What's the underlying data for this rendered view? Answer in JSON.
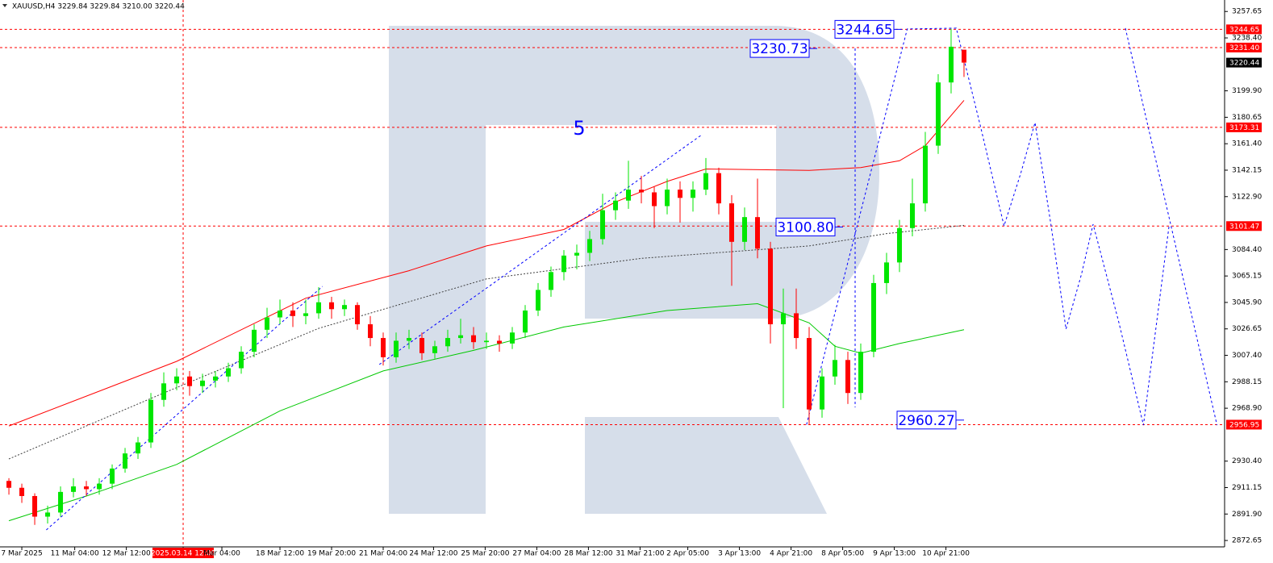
{
  "chart_data": {
    "type": "candlestick",
    "title": "XAUUSD,H4 3229.84 3229.84 3210.00 3220.44",
    "up_color": "#00e600",
    "down_color": "#ff0000",
    "candles": [
      [
        2916,
        2918,
        2906,
        2911
      ],
      [
        2911,
        2914,
        2900,
        2905
      ],
      [
        2905,
        2907,
        2884,
        2890
      ],
      [
        2890,
        2898,
        2885,
        2893
      ],
      [
        2893,
        2912,
        2890,
        2908
      ],
      [
        2908,
        2918,
        2904,
        2912
      ],
      [
        2912,
        2916,
        2905,
        2910
      ],
      [
        2910,
        2918,
        2906,
        2914
      ],
      [
        2914,
        2928,
        2910,
        2925
      ],
      [
        2925,
        2940,
        2922,
        2936
      ],
      [
        2936,
        2948,
        2932,
        2944
      ],
      [
        2944,
        2980,
        2940,
        2975
      ],
      [
        2975,
        2995,
        2970,
        2987
      ],
      [
        2987,
        2998,
        2982,
        2992
      ],
      [
        2992,
        2996,
        2978,
        2985
      ],
      [
        2985,
        2994,
        2980,
        2989
      ],
      [
        2989,
        2996,
        2984,
        2992
      ],
      [
        2992,
        3002,
        2988,
        2998
      ],
      [
        2998,
        3014,
        2994,
        3010
      ],
      [
        3010,
        3030,
        3006,
        3026
      ],
      [
        3026,
        3042,
        3020,
        3035
      ],
      [
        3035,
        3048,
        3030,
        3040
      ],
      [
        3040,
        3046,
        3028,
        3036
      ],
      [
        3036,
        3048,
        3030,
        3038
      ],
      [
        3038,
        3057,
        3034,
        3046
      ],
      [
        3046,
        3050,
        3034,
        3041
      ],
      [
        3041,
        3048,
        3036,
        3044
      ],
      [
        3044,
        3046,
        3026,
        3030
      ],
      [
        3030,
        3036,
        3014,
        3020
      ],
      [
        3020,
        3024,
        3000,
        3006
      ],
      [
        3006,
        3024,
        3002,
        3018
      ],
      [
        3018,
        3026,
        3012,
        3020
      ],
      [
        3020,
        3024,
        3004,
        3009
      ],
      [
        3009,
        3018,
        3005,
        3014
      ],
      [
        3014,
        3026,
        3010,
        3020
      ],
      [
        3020,
        3034,
        3016,
        3022
      ],
      [
        3022,
        3028,
        3012,
        3017
      ],
      [
        3017,
        3024,
        3012,
        3018
      ],
      [
        3018,
        3022,
        3010,
        3016
      ],
      [
        3016,
        3028,
        3012,
        3024
      ],
      [
        3024,
        3044,
        3020,
        3040
      ],
      [
        3040,
        3060,
        3036,
        3055
      ],
      [
        3055,
        3072,
        3050,
        3068
      ],
      [
        3068,
        3084,
        3062,
        3080
      ],
      [
        3080,
        3088,
        3070,
        3082
      ],
      [
        3082,
        3098,
        3076,
        3092
      ],
      [
        3092,
        3125,
        3088,
        3113
      ],
      [
        3113,
        3126,
        3106,
        3120
      ],
      [
        3120,
        3149,
        3114,
        3128
      ],
      [
        3128,
        3138,
        3118,
        3126
      ],
      [
        3126,
        3130,
        3100,
        3116
      ],
      [
        3116,
        3136,
        3110,
        3128
      ],
      [
        3128,
        3134,
        3104,
        3122
      ],
      [
        3122,
        3134,
        3112,
        3128
      ],
      [
        3128,
        3151,
        3124,
        3140
      ],
      [
        3140,
        3144,
        3110,
        3118
      ],
      [
        3118,
        3124,
        3058,
        3090
      ],
      [
        3090,
        3115,
        3084,
        3108
      ],
      [
        3108,
        3136,
        3078,
        3085
      ],
      [
        3085,
        3090,
        3016,
        3030
      ],
      [
        3030,
        3056,
        2969,
        3038
      ],
      [
        3038,
        3056,
        3012,
        3020
      ],
      [
        3020,
        3028,
        2957,
        2968
      ],
      [
        2968,
        2998,
        2962,
        2992
      ],
      [
        2992,
        3015,
        2986,
        3004
      ],
      [
        3004,
        3010,
        2972,
        2980
      ],
      [
        2980,
        3016,
        2975,
        3010
      ],
      [
        3010,
        3066,
        3006,
        3060
      ],
      [
        3060,
        3082,
        3052,
        3075
      ],
      [
        3075,
        3106,
        3068,
        3100
      ],
      [
        3100,
        3136,
        3094,
        3118
      ],
      [
        3118,
        3170,
        3112,
        3160
      ],
      [
        3160,
        3212,
        3154,
        3206
      ],
      [
        3206,
        3245,
        3198,
        3232
      ],
      [
        3229.84,
        3229.84,
        3210,
        3220.44
      ]
    ],
    "lines": [
      {
        "color": "#ff0000",
        "style": "solid",
        "x": [
          0,
          13,
          23,
          31,
          37,
          43,
          47,
          51,
          54,
          62,
          66,
          69,
          71,
          74
        ],
        "values": [
          2956,
          3003,
          3049,
          3069,
          3087,
          3099,
          3119,
          3134,
          3143,
          3142,
          3144,
          3149,
          3160,
          3193
        ]
      },
      {
        "color": "#00c800",
        "style": "solid",
        "x": [
          0,
          6,
          13,
          21,
          29,
          36,
          43,
          51,
          58,
          62,
          64,
          66,
          69,
          74
        ],
        "values": [
          2887,
          2905,
          2928,
          2967,
          2996,
          3011,
          3028,
          3040,
          3045,
          3031,
          3014,
          3009,
          3016,
          3026
        ]
      },
      {
        "color": "#404040",
        "style": "dotted",
        "x": [
          0,
          12,
          24,
          37,
          49,
          62,
          68,
          74
        ],
        "values": [
          2932,
          2980,
          3027,
          3063,
          3078,
          3087,
          3096,
          3102
        ]
      },
      {
        "color": "#0000ff",
        "style": "dashed",
        "x": [
          2.9,
          24.3
        ],
        "values": [
          2880.3,
          3057.6
        ]
      },
      {
        "color": "#0000ff",
        "style": "dashed",
        "x": [
          28.7,
          53.7
        ],
        "values": [
          3000.7,
          3168
        ]
      },
      {
        "color": "#0000ff",
        "style": "dashed",
        "x": [
          61.8,
          69.6,
          73.4,
          75.25,
          77.1,
          78.4,
          79.5,
          80.75,
          81.9,
          83.1,
          84,
          86,
          87.9,
          89.9
        ],
        "values": [
          2957,
          3244.9,
          3245.5,
          3175,
          3101.6,
          3140,
          3176.8,
          3101.6,
          3026.5,
          3066.4,
          3102.8,
          3031.2,
          2956.6,
          3102.8
        ]
      },
      {
        "color": "#0000ff",
        "style": "dashed",
        "x": [
          86.5,
          93.6
        ],
        "values": [
          3245.5,
          2956.6
        ]
      }
    ],
    "levels": [
      {
        "value": 3244.65,
        "label": "3244.65"
      },
      {
        "value": 3231.4,
        "label": "3231.40"
      },
      {
        "value": 3173.31,
        "label": "3173.31"
      },
      {
        "value": 3101.47,
        "label": "3101.47"
      },
      {
        "value": 2956.95,
        "label": "2956.95"
      }
    ],
    "level_color": "#ff0000",
    "last_price": {
      "value": 3220.44,
      "label": "3220.44"
    },
    "annotations": [
      {
        "value": 3244.65,
        "label": "3244.65"
      },
      {
        "value": 3230.73,
        "label": "3230.73"
      },
      {
        "value": 3100.8,
        "label": "3100.80"
      },
      {
        "value": 2960.27,
        "label": "2960.27"
      }
    ],
    "wave_label": "5",
    "ylim": [
      2868,
      3266
    ],
    "xlim": [
      -0.69,
      94.19
    ],
    "yticks": [
      3257.65,
      {
        "value": 3238.4,
        "label": "3238.40"
      },
      {
        "value": 3199.9,
        "label": "3199.90"
      },
      3180.65,
      {
        "value": 3161.4,
        "label": "3161.40"
      },
      3142.15,
      {
        "value": 3122.9,
        "label": "3122.90"
      },
      {
        "value": 3084.4,
        "label": "3084.40"
      },
      3065.15,
      {
        "value": 3045.9,
        "label": "3045.90"
      },
      3026.65,
      {
        "value": 3007.4,
        "label": "3007.40"
      },
      2988.15,
      {
        "value": 2968.9,
        "label": "2968.90"
      },
      {
        "value": 2930.4,
        "label": "2930.40"
      },
      2911.15,
      {
        "value": 2891.9,
        "label": "2891.90"
      },
      2872.65
    ],
    "xticks": [
      {
        "value": 1.0,
        "label": "7 Mar 2025"
      },
      {
        "value": 5.1,
        "label": "11 Mar 04:00"
      },
      {
        "value": 9.1,
        "label": "12 Mar 12:00"
      },
      {
        "value": 13.5,
        "label": "2025.03.14 12:00"
      },
      {
        "value": 16.5,
        "label": "Mar 04:00"
      },
      {
        "value": 21,
        "label": "18 Mar 12:00"
      },
      {
        "value": 25,
        "label": "19 Mar 20:00"
      },
      {
        "value": 29,
        "label": "21 Mar 04:00"
      },
      {
        "value": 32.9,
        "label": "24 Mar 12:00"
      },
      {
        "value": 36.9,
        "label": "25 Mar 20:00"
      },
      {
        "value": 40.9,
        "label": "27 Mar 04:00"
      },
      {
        "value": 44.9,
        "label": "28 Mar 12:00"
      },
      {
        "value": 48.9,
        "label": "31 Mar 21:00"
      },
      {
        "value": 52.6,
        "label": "2 Apr 05:00"
      },
      {
        "value": 56.6,
        "label": "3 Apr 13:00"
      },
      {
        "value": 60.6,
        "label": "4 Apr 21:00"
      },
      {
        "value": 64.6,
        "label": "8 Apr 05:00"
      },
      {
        "value": 68.6,
        "label": "9 Apr 13:00"
      },
      {
        "value": 72.6,
        "label": "10 Apr 21:00"
      }
    ],
    "crosshair_xtick": 3
  }
}
